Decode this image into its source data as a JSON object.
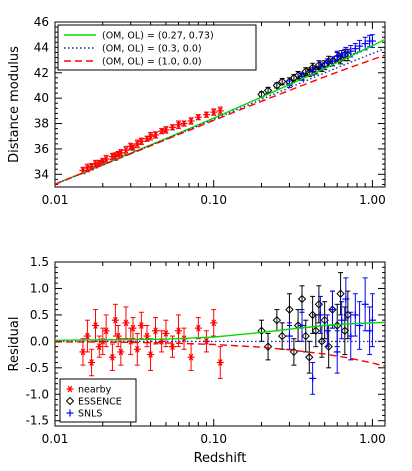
{
  "colors": {
    "nearby": "#ff0000",
    "essence": "#000000",
    "snls": "#0000ff",
    "flat_lcdm": "#00dd00",
    "open_model": "#2222aa",
    "einstein_de_sitter": "#ff0000"
  },
  "chart_data": [
    {
      "type": "scatter",
      "title": "",
      "xlabel": "",
      "ylabel": "Distance modulus",
      "xscale": "log",
      "xlim": [
        0.01,
        1.2
      ],
      "ylim": [
        33,
        46
      ],
      "xticks": [
        0.01,
        0.1,
        1.0
      ],
      "xtick_labels": [
        "0.01",
        "0.10",
        "1.00"
      ],
      "yticks": [
        34,
        36,
        38,
        40,
        42,
        44,
        46
      ],
      "ytick_labels": [
        "34",
        "36",
        "38",
        "40",
        "42",
        "44",
        "46"
      ],
      "grid": false,
      "legend": {
        "placement": "top-left",
        "entries": [
          {
            "label": "(OM, OL) = (0.27, 0.73)",
            "color": "#00dd00",
            "style": "solid"
          },
          {
            "label": "(OM, OL) = (0.3, 0.0)",
            "color": "#2222aa",
            "style": "dotted"
          },
          {
            "label": "(OM, OL) = (1.0, 0.0)",
            "color": "#ff0000",
            "style": "dashed"
          }
        ]
      },
      "series": [
        {
          "name": "(OM, OL) = (0.27, 0.73)",
          "kind": "line",
          "color": "#00dd00",
          "style": "solid",
          "x": [
            0.01,
            0.02,
            0.05,
            0.1,
            0.2,
            0.3,
            0.5,
            0.7,
            1.0,
            1.2
          ],
          "y": [
            33.23,
            34.76,
            36.81,
            38.42,
            40.08,
            41.06,
            42.34,
            43.21,
            44.13,
            44.63
          ]
        },
        {
          "name": "(OM, OL) = (0.3, 0.0)",
          "kind": "line",
          "color": "#2222aa",
          "style": "dotted",
          "x": [
            0.01,
            0.02,
            0.05,
            0.1,
            0.2,
            0.3,
            0.5,
            0.7,
            1.0,
            1.2
          ],
          "y": [
            33.22,
            34.74,
            36.77,
            38.33,
            39.9,
            40.82,
            41.99,
            42.74,
            43.52,
            43.93
          ]
        },
        {
          "name": "(OM, OL) = (1.0, 0.0)",
          "kind": "line",
          "color": "#ff0000",
          "style": "dashed",
          "x": [
            0.01,
            0.02,
            0.05,
            0.1,
            0.2,
            0.3,
            0.5,
            0.7,
            1.0,
            1.2
          ],
          "y": [
            33.21,
            34.73,
            36.73,
            38.25,
            39.75,
            40.61,
            41.68,
            42.35,
            43.04,
            43.39
          ]
        },
        {
          "name": "nearby",
          "kind": "points",
          "marker": "asterisk",
          "color": "#ff0000",
          "x": [
            0.015,
            0.016,
            0.017,
            0.018,
            0.019,
            0.02,
            0.021,
            0.023,
            0.024,
            0.025,
            0.026,
            0.028,
            0.03,
            0.031,
            0.033,
            0.035,
            0.038,
            0.04,
            0.043,
            0.047,
            0.05,
            0.055,
            0.06,
            0.065,
            0.072,
            0.08,
            0.09,
            0.1,
            0.11
          ],
          "y": [
            34.3,
            34.5,
            34.6,
            34.8,
            34.9,
            35.0,
            35.2,
            35.4,
            35.4,
            35.6,
            35.7,
            35.9,
            36.2,
            36.1,
            36.4,
            36.6,
            36.8,
            37.0,
            37.1,
            37.4,
            37.5,
            37.7,
            37.9,
            38.0,
            38.2,
            38.5,
            38.7,
            38.9,
            39.0
          ],
          "yerr": [
            0.25,
            0.3,
            0.25,
            0.3,
            0.2,
            0.25,
            0.3,
            0.25,
            0.3,
            0.2,
            0.25,
            0.3,
            0.25,
            0.2,
            0.3,
            0.25,
            0.2,
            0.3,
            0.25,
            0.2,
            0.25,
            0.2,
            0.3,
            0.2,
            0.25,
            0.2,
            0.2,
            0.25,
            0.3
          ]
        },
        {
          "name": "ESSENCE",
          "kind": "points",
          "marker": "diamond",
          "color": "#000000",
          "x": [
            0.2,
            0.22,
            0.25,
            0.27,
            0.3,
            0.32,
            0.34,
            0.36,
            0.38,
            0.4,
            0.42,
            0.44,
            0.46,
            0.48,
            0.5,
            0.53,
            0.56,
            0.6,
            0.63,
            0.67,
            0.7
          ],
          "y": [
            40.3,
            40.6,
            41.0,
            41.3,
            41.3,
            41.6,
            41.8,
            41.7,
            42.1,
            42.0,
            42.4,
            42.2,
            42.6,
            42.4,
            42.6,
            42.9,
            42.9,
            43.2,
            43.1,
            43.4,
            43.4
          ],
          "yerr": [
            0.2,
            0.25,
            0.2,
            0.25,
            0.3,
            0.25,
            0.3,
            0.25,
            0.3,
            0.3,
            0.35,
            0.3,
            0.35,
            0.3,
            0.35,
            0.4,
            0.35,
            0.4,
            0.4,
            0.45,
            0.45
          ]
        },
        {
          "name": "SNLS",
          "kind": "points",
          "marker": "plus",
          "color": "#0000ff",
          "x": [
            0.3,
            0.36,
            0.42,
            0.47,
            0.52,
            0.56,
            0.6,
            0.64,
            0.68,
            0.73,
            0.78,
            0.83,
            0.9,
            0.96,
            1.0
          ],
          "y": [
            41.1,
            41.7,
            42.1,
            42.5,
            42.8,
            42.9,
            43.3,
            43.4,
            43.6,
            43.7,
            43.9,
            44.1,
            44.3,
            44.5,
            44.5
          ],
          "yerr": [
            0.25,
            0.3,
            0.3,
            0.35,
            0.3,
            0.35,
            0.4,
            0.35,
            0.4,
            0.45,
            0.4,
            0.45,
            0.5,
            0.45,
            0.5
          ]
        }
      ]
    },
    {
      "type": "scatter",
      "title": "",
      "xlabel": "Redshift",
      "ylabel": "Residual",
      "xscale": "log",
      "xlim": [
        0.01,
        1.2
      ],
      "ylim": [
        -1.6,
        1.5
      ],
      "xticks": [
        0.01,
        0.1,
        1.0
      ],
      "xtick_labels": [
        "0.01",
        "0.10",
        "1.00"
      ],
      "yticks": [
        -1.5,
        -1.0,
        -0.5,
        0.0,
        0.5,
        1.0,
        1.5
      ],
      "ytick_labels": [
        "-1.5",
        "-1.0",
        "-0.5",
        "0.0",
        "0.5",
        "1.0",
        "1.5"
      ],
      "grid": false,
      "legend": {
        "placement": "bottom-left",
        "entries": [
          {
            "label": "nearby",
            "color": "#ff0000",
            "marker": "asterisk"
          },
          {
            "label": "ESSENCE",
            "color": "#000000",
            "marker": "diamond"
          },
          {
            "label": "SNLS",
            "color": "#0000ff",
            "marker": "plus"
          }
        ]
      },
      "series": [
        {
          "name": "(OM, OL) = (0.27, 0.73)",
          "kind": "line",
          "color": "#00dd00",
          "style": "solid",
          "x": [
            0.01,
            0.02,
            0.05,
            0.1,
            0.2,
            0.3,
            0.5,
            0.7,
            1.0,
            1.2
          ],
          "y": [
            0.02,
            0.03,
            0.04,
            0.08,
            0.17,
            0.23,
            0.3,
            0.33,
            0.35,
            0.36
          ]
        },
        {
          "name": "(OM, OL) = (0.3, 0.0)",
          "kind": "line",
          "color": "#2222aa",
          "style": "dotted",
          "x": [
            0.01,
            0.02,
            0.05,
            0.1,
            0.2,
            0.3,
            0.5,
            0.7,
            1.0,
            1.2
          ],
          "y": [
            0.0,
            0.0,
            0.0,
            0.0,
            0.0,
            0.0,
            0.0,
            0.0,
            0.0,
            0.0
          ]
        },
        {
          "name": "(OM, OL) = (1.0, 0.0)",
          "kind": "line",
          "color": "#ff0000",
          "style": "dashed",
          "x": [
            0.01,
            0.02,
            0.05,
            0.1,
            0.2,
            0.3,
            0.5,
            0.7,
            1.0,
            1.2
          ],
          "y": [
            -0.01,
            -0.01,
            -0.03,
            -0.06,
            -0.11,
            -0.16,
            -0.24,
            -0.31,
            -0.41,
            -0.47
          ]
        },
        {
          "name": "nearby",
          "kind": "points",
          "marker": "asterisk",
          "color": "#ff0000",
          "x": [
            0.015,
            0.016,
            0.017,
            0.018,
            0.019,
            0.02,
            0.021,
            0.023,
            0.024,
            0.025,
            0.026,
            0.028,
            0.03,
            0.031,
            0.033,
            0.035,
            0.038,
            0.04,
            0.043,
            0.047,
            0.05,
            0.055,
            0.06,
            0.065,
            0.072,
            0.08,
            0.09,
            0.1,
            0.11
          ],
          "y": [
            -0.2,
            0.1,
            -0.4,
            0.3,
            -0.1,
            0.0,
            0.2,
            -0.3,
            0.4,
            0.1,
            -0.2,
            0.35,
            0.0,
            0.25,
            -0.15,
            0.3,
            0.1,
            -0.25,
            0.2,
            0.0,
            0.15,
            -0.1,
            0.2,
            0.05,
            -0.3,
            0.25,
            0.0,
            0.35,
            -0.4
          ],
          "yerr": [
            0.25,
            0.3,
            0.25,
            0.3,
            0.2,
            0.25,
            0.3,
            0.25,
            0.3,
            0.2,
            0.25,
            0.3,
            0.25,
            0.2,
            0.3,
            0.25,
            0.2,
            0.3,
            0.25,
            0.2,
            0.25,
            0.2,
            0.3,
            0.2,
            0.25,
            0.2,
            0.2,
            0.25,
            0.3
          ]
        },
        {
          "name": "ESSENCE",
          "kind": "points",
          "marker": "diamond",
          "color": "#000000",
          "x": [
            0.2,
            0.22,
            0.25,
            0.27,
            0.3,
            0.32,
            0.34,
            0.36,
            0.38,
            0.4,
            0.42,
            0.44,
            0.46,
            0.48,
            0.5,
            0.53,
            0.56,
            0.6,
            0.63,
            0.67,
            0.7
          ],
          "y": [
            0.2,
            -0.1,
            0.4,
            0.1,
            0.6,
            -0.2,
            0.3,
            0.8,
            0.1,
            -0.3,
            0.5,
            0.2,
            0.7,
            0.0,
            0.4,
            -0.1,
            0.6,
            0.3,
            0.9,
            0.2,
            0.5
          ],
          "yerr": [
            0.2,
            0.25,
            0.2,
            0.25,
            0.3,
            0.25,
            0.3,
            0.25,
            0.3,
            0.3,
            0.35,
            0.3,
            0.35,
            0.3,
            0.35,
            0.4,
            0.35,
            0.4,
            0.4,
            0.45,
            0.45
          ]
        },
        {
          "name": "SNLS",
          "kind": "points",
          "marker": "plus",
          "color": "#0000ff",
          "x": [
            0.3,
            0.36,
            0.42,
            0.47,
            0.52,
            0.56,
            0.6,
            0.64,
            0.68,
            0.73,
            0.78,
            0.83,
            0.9,
            0.96,
            1.0
          ],
          "y": [
            0.1,
            0.3,
            -0.7,
            0.5,
            0.2,
            0.6,
            -0.2,
            0.4,
            0.8,
            0.1,
            0.5,
            0.3,
            0.7,
            0.2,
            0.4
          ],
          "yerr": [
            0.25,
            0.3,
            0.3,
            0.35,
            0.3,
            0.35,
            0.4,
            0.35,
            0.4,
            0.45,
            0.4,
            0.45,
            0.5,
            0.45,
            0.5
          ]
        }
      ]
    }
  ]
}
